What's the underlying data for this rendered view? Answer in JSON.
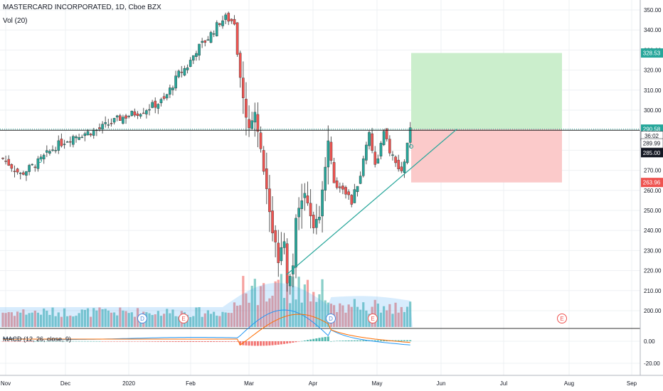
{
  "chart_title": "MASTERCARD INCORPORATED, 1D, Cboe BZX",
  "volume_label": "Vol (20)",
  "macd_label": "MACD (12, 26, close, 9)",
  "colors": {
    "up": "#26a69a",
    "down": "#ef5350",
    "grid": "#eef0f3",
    "profit_zone": "#c8edc9",
    "loss_zone": "#fbc7c7"
  },
  "price_axis": {
    "ticks": [
      "350.00",
      "340.00",
      "330.00",
      "320.00",
      "310.00",
      "300.00",
      "290.00",
      "280.00",
      "270.00",
      "260.00",
      "250.00",
      "240.00",
      "230.00",
      "220.00",
      "210.00",
      "200.00"
    ]
  },
  "macd_axis": {
    "ticks": [
      "0.00",
      "-20.00"
    ]
  },
  "time_axis": {
    "labels": [
      "Nov",
      "Dec",
      "2020",
      "Feb",
      "Mar",
      "Apr",
      "May",
      "Jun",
      "Jul",
      "Aug",
      "Sep"
    ]
  },
  "price_labels": {
    "target": "328.53",
    "last": "290.58",
    "countdown": "36:02",
    "horizontal": "289.99",
    "entry": "285.00",
    "stop": "263.96"
  },
  "events": [
    {
      "letter": "D",
      "x": 200
    },
    {
      "letter": "E",
      "x": 258
    },
    {
      "letter": "D",
      "x": 465
    },
    {
      "letter": "E",
      "x": 524
    },
    {
      "letter": "E",
      "x": 790
    }
  ],
  "chart_data": {
    "type": "candlestick",
    "title": "MASTERCARD INCORPORATED, 1D, Cboe BZX",
    "series": [
      {
        "name": "MASTERCARD INCORPORATED",
        "values": []
      },
      {
        "name": "Vol (20)",
        "values": []
      },
      {
        "name": "MACD (12, 26, close, 9)",
        "values": []
      }
    ],
    "ylim": [
      195,
      353
    ],
    "annotations": {
      "long_position": {
        "entry": 285.0,
        "target": 328.53,
        "stop": 263.96
      },
      "horizontal_line": 289.99,
      "last_price": 290.58
    }
  }
}
